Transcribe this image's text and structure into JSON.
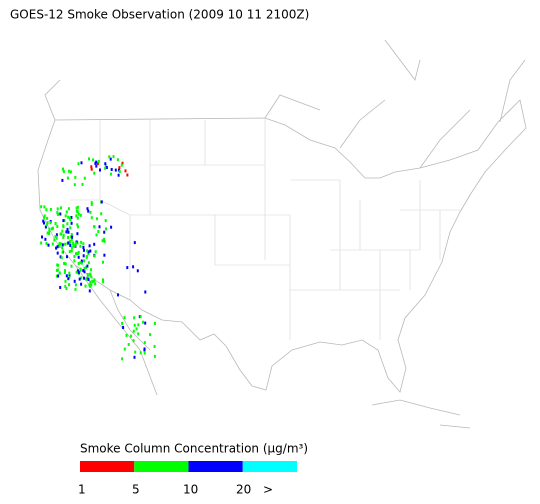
{
  "header": {
    "title": "GOES-12 Smoke Observation (2009 10 11  2100Z)"
  },
  "legend": {
    "title": "Smoke Column Concentration (μg/m³)",
    "ticks": [
      "1",
      "5",
      "10",
      "20",
      ">"
    ],
    "colors": [
      "#ff0000",
      "#00ff00",
      "#0000ff",
      "#00ffff"
    ]
  }
}
